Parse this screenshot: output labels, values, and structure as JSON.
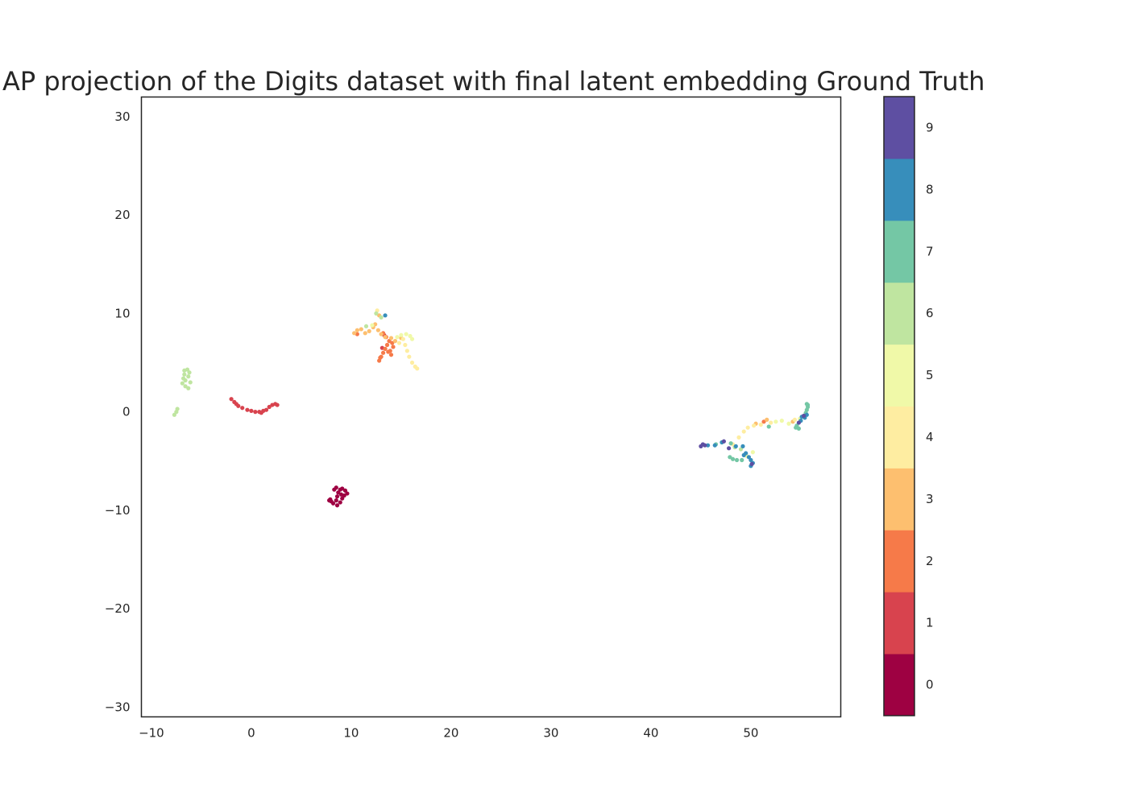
{
  "chart_data": {
    "type": "scatter",
    "title": "UMAP projection of the Digits dataset with final latent embedding Ground Truth",
    "xlabel": "",
    "ylabel": "",
    "xlim": [
      -11,
      59
    ],
    "ylim": [
      -31,
      32
    ],
    "x_ticks": [
      -10,
      0,
      10,
      20,
      30,
      40,
      50
    ],
    "y_ticks": [
      -30,
      -20,
      -10,
      0,
      10,
      20,
      30
    ],
    "grid": false,
    "colormap": "Spectral",
    "colorbar": {
      "labels": [
        "0",
        "1",
        "2",
        "3",
        "4",
        "5",
        "6",
        "7",
        "8",
        "9"
      ],
      "colors": [
        "#9e0142",
        "#d8434e",
        "#f67a49",
        "#fdbf6f",
        "#feeda1",
        "#f0f9a8",
        "#bfe5a0",
        "#74c7a5",
        "#378ebb",
        "#5e4fa2"
      ]
    },
    "series": [
      {
        "label": "0",
        "color": "#9e0142",
        "points": [
          [
            7.8,
            -9.0
          ],
          [
            8.0,
            -9.1
          ],
          [
            8.2,
            -9.3
          ],
          [
            8.5,
            -9.0
          ],
          [
            8.6,
            -8.6
          ],
          [
            8.7,
            -8.2
          ],
          [
            8.9,
            -7.9
          ],
          [
            9.1,
            -7.8
          ],
          [
            9.4,
            -8.0
          ],
          [
            9.6,
            -8.3
          ],
          [
            9.3,
            -8.5
          ],
          [
            9.1,
            -8.8
          ],
          [
            8.9,
            -9.2
          ],
          [
            8.6,
            -9.5
          ],
          [
            8.3,
            -7.9
          ],
          [
            8.5,
            -7.7
          ],
          [
            7.9,
            -8.9
          ],
          [
            9.0,
            -8.4
          ]
        ]
      },
      {
        "label": "1",
        "color": "#d8434e",
        "points": [
          [
            -2.0,
            1.3
          ],
          [
            -1.7,
            1.0
          ],
          [
            -1.3,
            0.6
          ],
          [
            -0.9,
            0.4
          ],
          [
            -0.4,
            0.2
          ],
          [
            0.0,
            0.1
          ],
          [
            0.4,
            0.0
          ],
          [
            0.8,
            0.0
          ],
          [
            1.2,
            0.1
          ],
          [
            1.5,
            0.2
          ],
          [
            1.8,
            0.5
          ],
          [
            2.1,
            0.7
          ],
          [
            2.4,
            0.8
          ],
          [
            2.6,
            0.7
          ],
          [
            -1.5,
            0.8
          ],
          [
            1.0,
            -0.1
          ],
          [
            13.1,
            6.5
          ],
          [
            13.3,
            7.8
          ]
        ]
      },
      {
        "label": "2",
        "color": "#f67a49",
        "points": [
          [
            12.8,
            5.2
          ],
          [
            13.0,
            5.6
          ],
          [
            13.2,
            6.0
          ],
          [
            13.4,
            6.4
          ],
          [
            13.6,
            6.8
          ],
          [
            13.8,
            7.2
          ],
          [
            13.5,
            7.6
          ],
          [
            13.2,
            8.0
          ],
          [
            13.9,
            6.2
          ],
          [
            14.2,
            6.6
          ],
          [
            14.0,
            5.8
          ],
          [
            12.9,
            5.5
          ],
          [
            13.7,
            6.1
          ],
          [
            14.1,
            7.0
          ],
          [
            10.6,
            7.9
          ],
          [
            51.3,
            -1.0
          ]
        ]
      },
      {
        "label": "3",
        "color": "#fdbf6f",
        "points": [
          [
            10.3,
            8.0
          ],
          [
            10.6,
            8.3
          ],
          [
            11.0,
            8.4
          ],
          [
            11.4,
            8.0
          ],
          [
            11.8,
            8.2
          ],
          [
            12.2,
            8.6
          ],
          [
            12.4,
            8.9
          ],
          [
            12.7,
            8.3
          ],
          [
            13.0,
            7.9
          ],
          [
            13.4,
            7.6
          ],
          [
            14.0,
            7.5
          ],
          [
            14.4,
            7.2
          ],
          [
            15.0,
            7.5
          ],
          [
            12.8,
            9.8
          ],
          [
            50.5,
            -1.2
          ],
          [
            51.6,
            -0.8
          ],
          [
            54.2,
            -1.0
          ]
        ]
      },
      {
        "label": "4",
        "color": "#feeda1",
        "points": [
          [
            15.2,
            7.4
          ],
          [
            15.4,
            6.8
          ],
          [
            15.6,
            6.2
          ],
          [
            15.8,
            5.6
          ],
          [
            16.1,
            5.0
          ],
          [
            16.4,
            4.6
          ],
          [
            16.6,
            4.4
          ],
          [
            14.8,
            7.0
          ],
          [
            12.6,
            10.3
          ],
          [
            48.2,
            -3.3
          ],
          [
            48.8,
            -2.6
          ],
          [
            49.3,
            -2.0
          ],
          [
            49.7,
            -1.6
          ],
          [
            50.3,
            -1.4
          ],
          [
            51.0,
            -1.3
          ],
          [
            52.0,
            -1.1
          ],
          [
            54.4,
            -0.8
          ]
        ]
      },
      {
        "label": "5",
        "color": "#f0f9a8",
        "points": [
          [
            15.0,
            7.8
          ],
          [
            15.5,
            7.9
          ],
          [
            15.9,
            7.7
          ],
          [
            16.1,
            7.4
          ],
          [
            14.6,
            7.6
          ],
          [
            12.1,
            8.8
          ],
          [
            52.5,
            -1.0
          ],
          [
            53.1,
            -0.9
          ],
          [
            53.8,
            -1.2
          ],
          [
            50.2,
            -4.1
          ],
          [
            49.6,
            -4.5
          ],
          [
            54.9,
            -0.7
          ]
        ]
      },
      {
        "label": "6",
        "color": "#bfe5a0",
        "points": [
          [
            -6.7,
            4.2
          ],
          [
            -6.4,
            4.3
          ],
          [
            -6.2,
            4.0
          ],
          [
            -6.3,
            3.6
          ],
          [
            -6.6,
            3.2
          ],
          [
            -6.9,
            2.9
          ],
          [
            -6.6,
            2.6
          ],
          [
            -6.3,
            2.4
          ],
          [
            -6.1,
            3.0
          ],
          [
            -6.7,
            3.8
          ],
          [
            -7.5,
            0.0
          ],
          [
            -7.7,
            -0.3
          ],
          [
            -7.4,
            0.3
          ],
          [
            -6.8,
            3.4
          ],
          [
            12.5,
            10.0
          ],
          [
            13.0,
            9.6
          ],
          [
            11.5,
            8.7
          ],
          [
            48.4,
            -3.6
          ],
          [
            49.0,
            -3.8
          ]
        ]
      },
      {
        "label": "7",
        "color": "#74c7a5",
        "points": [
          [
            55.6,
            0.8
          ],
          [
            55.7,
            0.5
          ],
          [
            55.6,
            0.2
          ],
          [
            55.5,
            -0.1
          ],
          [
            54.6,
            -1.4
          ],
          [
            54.8,
            -1.7
          ],
          [
            54.5,
            -1.6
          ],
          [
            48.2,
            -4.8
          ],
          [
            48.6,
            -4.9
          ],
          [
            49.1,
            -4.9
          ],
          [
            47.9,
            -4.6
          ],
          [
            51.8,
            -1.5
          ],
          [
            46.5,
            -3.3
          ],
          [
            48.0,
            -3.2
          ],
          [
            55.7,
            0.7
          ]
        ]
      },
      {
        "label": "8",
        "color": "#378ebb",
        "points": [
          [
            13.4,
            9.8
          ],
          [
            55.0,
            -0.9
          ],
          [
            55.4,
            -0.6
          ],
          [
            55.6,
            -0.3
          ],
          [
            55.1,
            -0.5
          ],
          [
            49.5,
            -4.2
          ],
          [
            49.8,
            -4.6
          ],
          [
            50.0,
            -4.9
          ],
          [
            50.2,
            -5.2
          ],
          [
            50.0,
            -5.5
          ],
          [
            49.3,
            -4.4
          ],
          [
            48.5,
            -3.5
          ],
          [
            49.2,
            -3.5
          ],
          [
            47.1,
            -3.1
          ],
          [
            46.4,
            -3.4
          ],
          [
            45.7,
            -3.4
          ]
        ]
      },
      {
        "label": "9",
        "color": "#5e4fa2",
        "points": [
          [
            45.0,
            -3.5
          ],
          [
            45.2,
            -3.3
          ],
          [
            45.4,
            -3.4
          ],
          [
            47.3,
            -3.0
          ],
          [
            47.8,
            -3.7
          ],
          [
            50.1,
            -5.3
          ],
          [
            54.8,
            -1.1
          ],
          [
            55.3,
            -0.4
          ]
        ]
      }
    ]
  }
}
